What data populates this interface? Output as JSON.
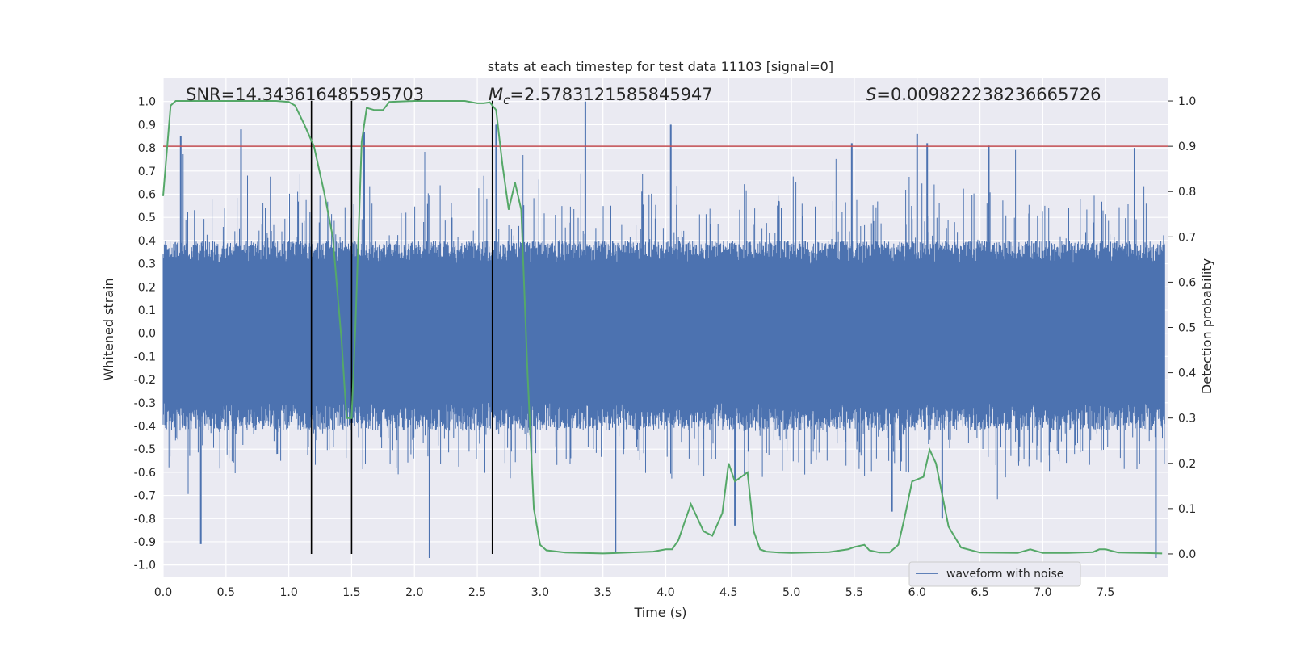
{
  "chart_data": {
    "type": "line",
    "title": "stats at each timestep for test data 11103 [signal=0]",
    "xlabel": "Time (s)",
    "ylabel_left": "Whitened strain",
    "ylabel_right": "Detection probability",
    "xlim": [
      0.0,
      8.0
    ],
    "ylim_left": [
      -1.05,
      1.1
    ],
    "ylim_right": [
      -0.05,
      1.05
    ],
    "x_ticks": [
      "0.0",
      "0.5",
      "1.0",
      "1.5",
      "2.0",
      "2.5",
      "3.0",
      "3.5",
      "4.0",
      "4.5",
      "5.0",
      "5.5",
      "6.0",
      "6.5",
      "7.0",
      "7.5"
    ],
    "x_tick_values": [
      0,
      0.5,
      1,
      1.5,
      2,
      2.5,
      3,
      3.5,
      4,
      4.5,
      5,
      5.5,
      6,
      6.5,
      7,
      7.5
    ],
    "y_ticks_left": [
      "1.0",
      "0.9",
      "0.8",
      "0.7",
      "0.6",
      "0.5",
      "0.4",
      "0.3",
      "0.2",
      "0.1",
      "0.0",
      "-0.1",
      "-0.2",
      "-0.3",
      "-0.4",
      "-0.5",
      "-0.6",
      "-0.7",
      "-0.8",
      "-0.9",
      "-1.0"
    ],
    "y_tick_values_left": [
      1.0,
      0.9,
      0.8,
      0.7,
      0.6,
      0.5,
      0.4,
      0.3,
      0.2,
      0.1,
      0.0,
      -0.1,
      -0.2,
      -0.3,
      -0.4,
      -0.5,
      -0.6,
      -0.7,
      -0.8,
      -0.9,
      -1.0
    ],
    "y_ticks_right": [
      "1.0",
      "0.9",
      "0.8",
      "0.7",
      "0.6",
      "0.5",
      "0.4",
      "0.3",
      "0.2",
      "0.1",
      "0.0"
    ],
    "y_tick_values_right": [
      1.0,
      0.9,
      0.8,
      0.7,
      0.6,
      0.5,
      0.4,
      0.3,
      0.2,
      0.1,
      0.0
    ],
    "stats": {
      "snr": "SNR=14.343616485595703",
      "mc_symbol": "M",
      "mc_sub": "c",
      "mc_value": "=2.5783121585845947",
      "s_symbol": "S",
      "s_value": "=0.009822238236665726"
    },
    "threshold": {
      "value": 0.9,
      "axis": "right",
      "color": "#c44e52"
    },
    "vertical_lines": [
      1.18,
      1.5,
      2.62
    ],
    "legend": {
      "label": "waveform with noise",
      "position": "lower-right"
    },
    "series": [
      {
        "name": "waveform with noise",
        "axis": "left",
        "color": "#4c72b0",
        "description": "whitened strain noise band, core amplitude about +-0.4, peaks up to 1.0 and down to -0.95",
        "peaks": [
          {
            "t": 0.14,
            "v": 0.85
          },
          {
            "t": 0.62,
            "v": 0.88
          },
          {
            "t": 1.6,
            "v": 0.87
          },
          {
            "t": 2.65,
            "v": 0.9
          },
          {
            "t": 3.36,
            "v": 1.0
          },
          {
            "t": 4.04,
            "v": 0.9
          },
          {
            "t": 5.48,
            "v": 0.82
          },
          {
            "t": 6.0,
            "v": 0.86
          },
          {
            "t": 6.08,
            "v": 0.82
          },
          {
            "t": 6.57,
            "v": 0.81
          },
          {
            "t": 7.73,
            "v": 0.8
          }
        ],
        "troughs": [
          {
            "t": 0.3,
            "v": -0.91
          },
          {
            "t": 2.12,
            "v": -0.97
          },
          {
            "t": 3.6,
            "v": -0.95
          },
          {
            "t": 4.55,
            "v": -0.83
          },
          {
            "t": 5.8,
            "v": -0.77
          },
          {
            "t": 6.2,
            "v": -0.8
          },
          {
            "t": 7.9,
            "v": -0.97
          }
        ]
      },
      {
        "name": "detection probability",
        "axis": "right",
        "color": "#55a868",
        "x": [
          0.0,
          0.06,
          0.1,
          0.2,
          0.5,
          0.9,
          1.0,
          1.05,
          1.12,
          1.2,
          1.28,
          1.35,
          1.42,
          1.46,
          1.5,
          1.53,
          1.58,
          1.62,
          1.68,
          1.75,
          1.8,
          2.0,
          2.4,
          2.5,
          2.55,
          2.6,
          2.65,
          2.7,
          2.75,
          2.8,
          2.85,
          2.9,
          2.95,
          3.0,
          3.05,
          3.2,
          3.5,
          3.7,
          3.9,
          4.0,
          4.05,
          4.1,
          4.15,
          4.2,
          4.25,
          4.3,
          4.37,
          4.45,
          4.5,
          4.55,
          4.6,
          4.65,
          4.7,
          4.75,
          4.8,
          4.9,
          5.0,
          5.3,
          5.45,
          5.5,
          5.58,
          5.62,
          5.7,
          5.78,
          5.85,
          5.9,
          5.96,
          6.05,
          6.1,
          6.15,
          6.25,
          6.35,
          6.5,
          6.8,
          6.9,
          7.0,
          7.2,
          7.4,
          7.45,
          7.5,
          7.6,
          7.8,
          7.95
        ],
        "y": [
          0.79,
          0.99,
          1.0,
          1.0,
          1.0,
          1.0,
          0.998,
          0.99,
          0.95,
          0.9,
          0.8,
          0.7,
          0.47,
          0.3,
          0.3,
          0.5,
          0.91,
          0.985,
          0.98,
          0.98,
          0.998,
          1.0,
          1.0,
          0.995,
          0.995,
          0.997,
          0.98,
          0.86,
          0.76,
          0.82,
          0.76,
          0.4,
          0.1,
          0.02,
          0.008,
          0.003,
          0.001,
          0.003,
          0.005,
          0.01,
          0.01,
          0.03,
          0.07,
          0.11,
          0.08,
          0.05,
          0.04,
          0.09,
          0.2,
          0.16,
          0.17,
          0.18,
          0.05,
          0.01,
          0.005,
          0.003,
          0.002,
          0.004,
          0.01,
          0.015,
          0.02,
          0.008,
          0.003,
          0.003,
          0.02,
          0.08,
          0.16,
          0.17,
          0.23,
          0.2,
          0.06,
          0.014,
          0.003,
          0.002,
          0.01,
          0.002,
          0.002,
          0.004,
          0.01,
          0.01,
          0.003,
          0.002,
          0.001
        ]
      }
    ]
  }
}
